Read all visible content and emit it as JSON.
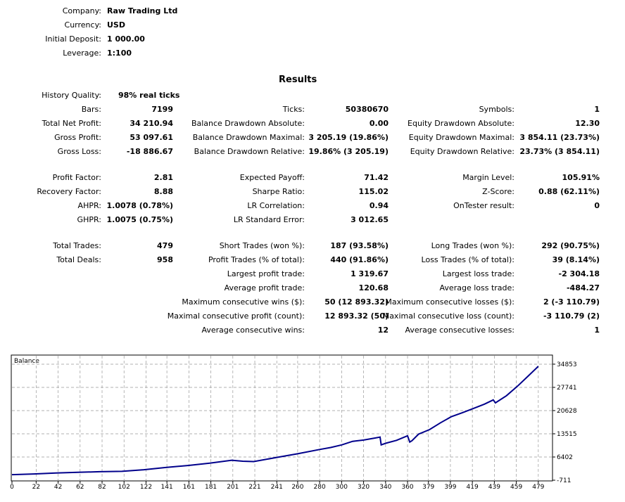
{
  "report": {
    "settings": [
      {
        "label": "Company:",
        "value": "Raw Trading Ltd"
      },
      {
        "label": "Currency:",
        "value": "USD"
      },
      {
        "label": "Initial Deposit:",
        "value": "1 000.00"
      },
      {
        "label": "Leverage:",
        "value": "1:100"
      }
    ],
    "results_title": "Results",
    "history_quality": {
      "label": "History Quality:",
      "value": "98% real ticks"
    },
    "col1": [
      {
        "label": "Bars:",
        "value": "7199"
      },
      {
        "label": "Total Net Profit:",
        "value": "34 210.94"
      },
      {
        "label": "Gross Profit:",
        "value": "53 097.61"
      },
      {
        "label": "Gross Loss:",
        "value": "-18 886.67"
      },
      {
        "label": "Profit Factor:",
        "value": "2.81"
      },
      {
        "label": "Recovery Factor:",
        "value": "8.88"
      },
      {
        "label": "AHPR:",
        "value": "1.0078 (0.78%)"
      },
      {
        "label": "GHPR:",
        "value": "1.0075 (0.75%)"
      },
      {
        "label": "Total Trades:",
        "value": "479"
      },
      {
        "label": "Total Deals:",
        "value": "958"
      }
    ],
    "col2": [
      {
        "label": "Ticks:",
        "value": "50380670"
      },
      {
        "label": "Balance Drawdown Absolute:",
        "value": "0.00"
      },
      {
        "label": "Balance Drawdown Maximal:",
        "value": "3 205.19 (19.86%)"
      },
      {
        "label": "Balance Drawdown Relative:",
        "value": "19.86% (3 205.19)"
      },
      {
        "label": "Expected Payoff:",
        "value": "71.42"
      },
      {
        "label": "Sharpe Ratio:",
        "value": "115.02"
      },
      {
        "label": "LR Correlation:",
        "value": "0.94"
      },
      {
        "label": "LR Standard Error:",
        "value": "3 012.65"
      },
      {
        "label": "Short Trades (won %):",
        "value": "187 (93.58%)"
      },
      {
        "label": "Profit Trades (% of total):",
        "value": "440 (91.86%)"
      },
      {
        "label": "Largest profit trade:",
        "value": "1 319.67"
      },
      {
        "label": "Average profit trade:",
        "value": "120.68"
      },
      {
        "label": "Maximum consecutive wins ($):",
        "value": "50 (12 893.32)"
      },
      {
        "label": "Maximal consecutive profit (count):",
        "value": "12 893.32 (50)"
      },
      {
        "label": "Average consecutive wins:",
        "value": "12"
      }
    ],
    "col3": [
      {
        "label": "Symbols:",
        "value": "1"
      },
      {
        "label": "Equity Drawdown Absolute:",
        "value": "12.30"
      },
      {
        "label": "Equity Drawdown Maximal:",
        "value": "3 854.11 (23.73%)"
      },
      {
        "label": "Equity Drawdown Relative:",
        "value": "23.73% (3 854.11)"
      },
      {
        "label": "Margin Level:",
        "value": "105.91%"
      },
      {
        "label": "Z-Score:",
        "value": "0.88 (62.11%)"
      },
      {
        "label": "OnTester result:",
        "value": "0"
      },
      {
        "label": "Long Trades (won %):",
        "value": "292 (90.75%)"
      },
      {
        "label": "Loss Trades (% of total):",
        "value": "39 (8.14%)"
      },
      {
        "label": "Largest loss trade:",
        "value": "-2 304.18"
      },
      {
        "label": "Average loss trade:",
        "value": "-484.27"
      },
      {
        "label": "Maximum consecutive losses ($):",
        "value": "2 (-3 110.79)"
      },
      {
        "label": "Maximal consecutive loss (count):",
        "value": "-3 110.79 (2)"
      },
      {
        "label": "Average consecutive losses:",
        "value": "1"
      }
    ]
  },
  "chart_data": {
    "type": "line",
    "title": "Balance",
    "line_color": "#00008b",
    "ylim": [
      -711,
      37000
    ],
    "xlim": [
      0,
      490
    ],
    "y_ticks": [
      34853,
      27741,
      20628,
      13515,
      6402,
      -711
    ],
    "x_ticks": [
      0,
      22,
      42,
      62,
      82,
      102,
      122,
      141,
      161,
      181,
      201,
      221,
      241,
      260,
      280,
      300,
      320,
      340,
      360,
      379,
      399,
      419,
      439,
      459,
      479
    ],
    "series": [
      {
        "name": "Balance",
        "x": [
          0,
          20,
          40,
          60,
          80,
          100,
          120,
          140,
          160,
          180,
          200,
          210,
          220,
          240,
          260,
          280,
          290,
          300,
          310,
          320,
          330,
          335,
          336,
          340,
          350,
          360,
          362,
          364,
          370,
          380,
          390,
          400,
          410,
          420,
          430,
          438,
          440,
          450,
          460,
          470,
          479
        ],
        "values": [
          1000,
          1200,
          1500,
          1700,
          1900,
          2000,
          2500,
          3200,
          3800,
          4500,
          5400,
          5100,
          5000,
          6200,
          7400,
          8700,
          9300,
          10100,
          11200,
          11600,
          12200,
          12500,
          10100,
          10600,
          11500,
          12900,
          11000,
          11400,
          13400,
          14800,
          16900,
          18800,
          20000,
          21300,
          22600,
          23900,
          23000,
          25200,
          28100,
          31300,
          34200
        ]
      }
    ]
  }
}
